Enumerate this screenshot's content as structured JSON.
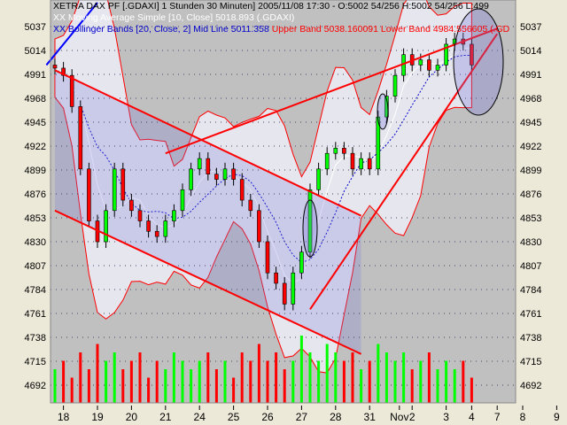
{
  "header": {
    "title": "XETRA DAX PF [.GDAXI] 1 Stunden 30 Minuten] 2005/11/08 17:30 - O:5002 54/256 H:5002 54/256 L:499",
    "ma": "XX Moving Average Simple [10, Close] 5018.893 (.GDAXI)",
    "bb_mid": "XX Bollinger Bands [20, Close, 2] Mid Line 5011.358",
    "bb_upper": "Upper Band 5038.160091 Lower Band 4984.556605 (.GD"
  },
  "colors": {
    "plot_bg": "#c0c0c0",
    "frame_bg": "#ece9d8",
    "up": "#00ff00",
    "down": "#ff0000",
    "band": "#ff0000",
    "ma": "#ffffff",
    "mid": "#0000cc"
  },
  "chart_data": {
    "type": "candlestick",
    "ylim": [
      4676,
      5052
    ],
    "yticks": [
      5037,
      5014,
      4991,
      4968,
      4945,
      4922,
      4899,
      4876,
      4853,
      4830,
      4807,
      4784,
      4761,
      4738,
      4715,
      4692
    ],
    "xtick_labels": [
      "18",
      "19",
      "20",
      "21",
      "24",
      "25",
      "26",
      "27",
      "28",
      "31",
      "Nov",
      "2",
      "3",
      "4",
      "7",
      "8",
      "9"
    ],
    "xtick_bars": [
      1,
      5,
      9,
      13,
      17,
      21,
      25,
      29,
      33,
      37,
      40.5,
      42,
      46,
      49,
      52,
      55,
      59
    ],
    "close": [
      4997,
      4990,
      4960,
      4900,
      4850,
      4830,
      4860,
      4900,
      4870,
      4860,
      4850,
      4840,
      4835,
      4850,
      4860,
      4880,
      4900,
      4910,
      4895,
      4890,
      4900,
      4890,
      4870,
      4860,
      4830,
      4800,
      4790,
      4770,
      4800,
      4820,
      4880,
      4900,
      4915,
      4920,
      4915,
      4900,
      4910,
      4900,
      4950,
      4970,
      4990,
      5010,
      5000,
      5005,
      4995,
      5000,
      5020,
      5025,
      5020,
      5000
    ],
    "volume": [
      0.4,
      0.5,
      0.3,
      0.6,
      0.4,
      0.7,
      0.5,
      0.6,
      0.4,
      0.5,
      0.6,
      0.3,
      0.5,
      0.4,
      0.6,
      0.5,
      0.4,
      0.5,
      0.6,
      0.4,
      0.5,
      0.3,
      0.6,
      0.5,
      0.7,
      0.5,
      0.6,
      0.4,
      0.5,
      0.8,
      0.6,
      0.5,
      0.7,
      0.6,
      0.5,
      0.6,
      0.4,
      0.5,
      0.7,
      0.6,
      0.5,
      0.6,
      0.4,
      0.5,
      0.6,
      0.4,
      0.5,
      0.4,
      0.5,
      0.3
    ],
    "trendlines": [
      {
        "color": "#ff0000",
        "from": [
          0,
          4995
        ],
        "to": [
          36,
          4855
        ]
      },
      {
        "color": "#ff0000",
        "from": [
          0,
          4860
        ],
        "to": [
          36,
          4722
        ]
      },
      {
        "color": "#ff0000",
        "from": [
          13,
          4915
        ],
        "to": [
          52,
          5035
        ]
      },
      {
        "color": "#ff0000",
        "from": [
          30,
          4765
        ],
        "to": [
          52,
          5030
        ]
      },
      {
        "color": "#0000ff",
        "from": [
          -1,
          5000
        ],
        "to": [
          5,
          5060
        ]
      }
    ]
  }
}
